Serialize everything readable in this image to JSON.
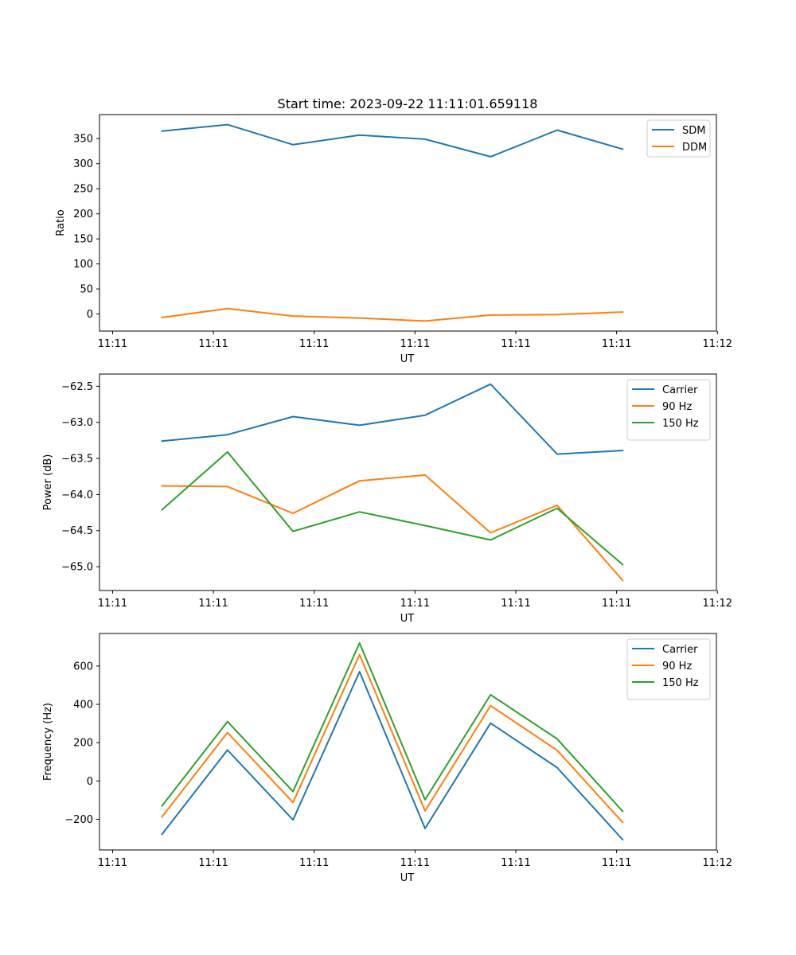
{
  "figure": {
    "title": "Start time: 2023-09-22 11:11:01.659118"
  },
  "chart_data": [
    {
      "type": "line",
      "title": "Start time: 2023-09-22 11:11:01.659118",
      "xlabel": "UT",
      "ylabel": "Ratio",
      "x_tick_labels": [
        "11:11",
        "11:11",
        "11:11",
        "11:11",
        "11:11",
        "11:11",
        "11:12"
      ],
      "x_tick_values": [
        0,
        1,
        2,
        3,
        4,
        5,
        6
      ],
      "xlim": [
        -0.13,
        5.99
      ],
      "ylim": [
        -34,
        398
      ],
      "y_ticks": [
        0,
        50,
        100,
        150,
        200,
        250,
        300,
        350
      ],
      "y_tick_labels": [
        "0",
        "50",
        "100",
        "150",
        "200",
        "250",
        "300",
        "350"
      ],
      "legend": "top-right",
      "x": [
        0.49,
        1.14,
        1.79,
        2.45,
        3.1,
        3.75,
        4.41,
        5.06
      ],
      "series": [
        {
          "name": "SDM",
          "color": "#1f77b4",
          "values": [
            365,
            378,
            338,
            357,
            349,
            314,
            367,
            329
          ]
        },
        {
          "name": "DDM",
          "color": "#ff7f0e",
          "values": [
            -7,
            11,
            -4,
            -8,
            -14,
            -2,
            -1,
            4
          ]
        }
      ]
    },
    {
      "type": "line",
      "title": "",
      "xlabel": "UT",
      "ylabel": "Power (dB)",
      "x_tick_labels": [
        "11:11",
        "11:11",
        "11:11",
        "11:11",
        "11:11",
        "11:11",
        "11:12"
      ],
      "x_tick_values": [
        0,
        1,
        2,
        3,
        4,
        5,
        6
      ],
      "xlim": [
        -0.13,
        5.99
      ],
      "ylim": [
        -65.33,
        -62.33
      ],
      "y_ticks": [
        -65.0,
        -64.5,
        -64.0,
        -63.5,
        -63.0,
        -62.5
      ],
      "y_tick_labels": [
        "−65.0",
        "−64.5",
        "−64.0",
        "−63.5",
        "−63.0",
        "−62.5"
      ],
      "legend": "top-right",
      "x": [
        0.49,
        1.14,
        1.79,
        2.45,
        3.1,
        3.75,
        4.41,
        5.06
      ],
      "series": [
        {
          "name": "Carrier",
          "color": "#1f77b4",
          "values": [
            -63.26,
            -63.17,
            -62.92,
            -63.04,
            -62.9,
            -62.47,
            -63.44,
            -63.39
          ]
        },
        {
          "name": "90 Hz",
          "color": "#ff7f0e",
          "values": [
            -63.88,
            -63.89,
            -64.26,
            -63.81,
            -63.73,
            -64.53,
            -64.15,
            -65.19
          ]
        },
        {
          "name": "150 Hz",
          "color": "#2ca02c",
          "values": [
            -64.21,
            -63.41,
            -64.51,
            -64.24,
            -64.43,
            -64.63,
            -64.19,
            -64.97
          ]
        }
      ]
    },
    {
      "type": "line",
      "title": "",
      "xlabel": "UT",
      "ylabel": "Frequency (Hz)",
      "x_tick_labels": [
        "11:11",
        "11:11",
        "11:11",
        "11:11",
        "11:11",
        "11:11",
        "11:12"
      ],
      "x_tick_values": [
        0,
        1,
        2,
        3,
        4,
        5,
        6
      ],
      "xlim": [
        -0.13,
        5.99
      ],
      "ylim": [
        -360,
        770
      ],
      "y_ticks": [
        -200,
        0,
        200,
        400,
        600
      ],
      "y_tick_labels": [
        "−200",
        "0",
        "200",
        "400",
        "600"
      ],
      "legend": "top-right",
      "x": [
        0.49,
        1.14,
        1.79,
        2.45,
        3.1,
        3.75,
        4.41,
        5.06
      ],
      "series": [
        {
          "name": "Carrier",
          "color": "#1f77b4",
          "values": [
            -278,
            162,
            -203,
            570,
            -248,
            302,
            70,
            -306
          ]
        },
        {
          "name": "90 Hz",
          "color": "#ff7f0e",
          "values": [
            -187,
            253,
            -112,
            660,
            -156,
            393,
            160,
            -216
          ]
        },
        {
          "name": "150 Hz",
          "color": "#2ca02c",
          "values": [
            -130,
            310,
            -55,
            720,
            -98,
            450,
            220,
            -158
          ]
        }
      ]
    }
  ]
}
